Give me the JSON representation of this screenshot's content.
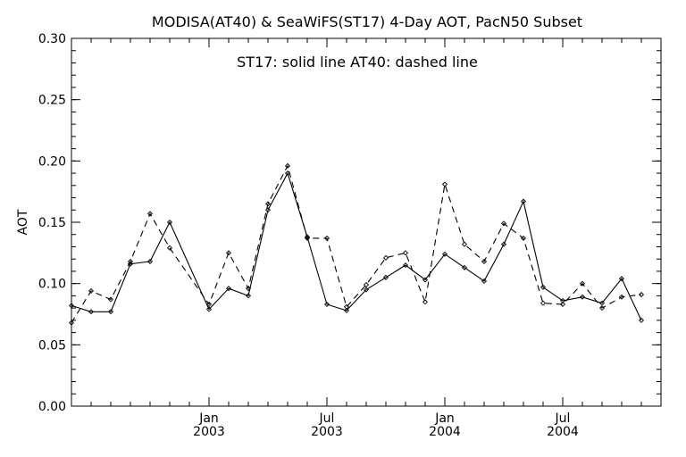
{
  "chart_data": {
    "type": "line",
    "title": "MODISA(AT40) & SeaWiFS(ST17) 4-Day AOT, PacN50 Subset",
    "annotation": "ST17: solid line   AT40: dashed line",
    "ylabel": "AOT",
    "xlabel": "",
    "ylim": [
      0.0,
      0.3
    ],
    "yticks": [
      "0.00",
      "0.05",
      "0.10",
      "0.15",
      "0.20",
      "0.25",
      "0.30"
    ],
    "xticks": [
      {
        "label": "Jan",
        "sublabel": "2003"
      },
      {
        "label": "Jul",
        "sublabel": "2003"
      },
      {
        "label": "Jan",
        "sublabel": "2004"
      },
      {
        "label": "Jul",
        "sublabel": "2004"
      }
    ],
    "x": [
      "2002-07",
      "2002-08",
      "2002-09",
      "2002-10",
      "2002-11",
      "2002-12",
      "2002-12b",
      "2003-01",
      "2003-02",
      "2003-03",
      "2003-04",
      "2003-05",
      "2003-06",
      "2003-07",
      "2003-08",
      "2003-09",
      "2003-10",
      "2003-11",
      "2003-12",
      "2004-01",
      "2004-02",
      "2004-03",
      "2004-04",
      "2004-05",
      "2004-06",
      "2004-07",
      "2004-08",
      "2004-09",
      "2004-10",
      "2004-11",
      "2004-12"
    ],
    "series": [
      {
        "name": "ST17",
        "style": "solid",
        "values": [
          0.082,
          0.077,
          0.077,
          0.116,
          0.118,
          0.15,
          null,
          0.079,
          0.096,
          0.09,
          0.16,
          0.19,
          0.138,
          0.083,
          0.078,
          0.095,
          0.105,
          0.115,
          0.103,
          0.124,
          0.113,
          0.102,
          0.132,
          0.167,
          0.097,
          0.086,
          0.089,
          0.084,
          0.104,
          0.07,
          null
        ]
      },
      {
        "name": "AT40",
        "style": "dashed",
        "values": [
          0.068,
          0.094,
          0.087,
          0.118,
          0.157,
          0.129,
          null,
          0.083,
          0.125,
          0.096,
          0.165,
          0.196,
          0.137,
          0.137,
          0.081,
          0.099,
          0.121,
          0.125,
          0.085,
          0.181,
          0.132,
          0.118,
          0.149,
          0.137,
          0.084,
          0.083,
          0.1,
          0.08,
          0.089,
          0.091,
          null
        ]
      }
    ],
    "grid": false,
    "legend": "none"
  }
}
